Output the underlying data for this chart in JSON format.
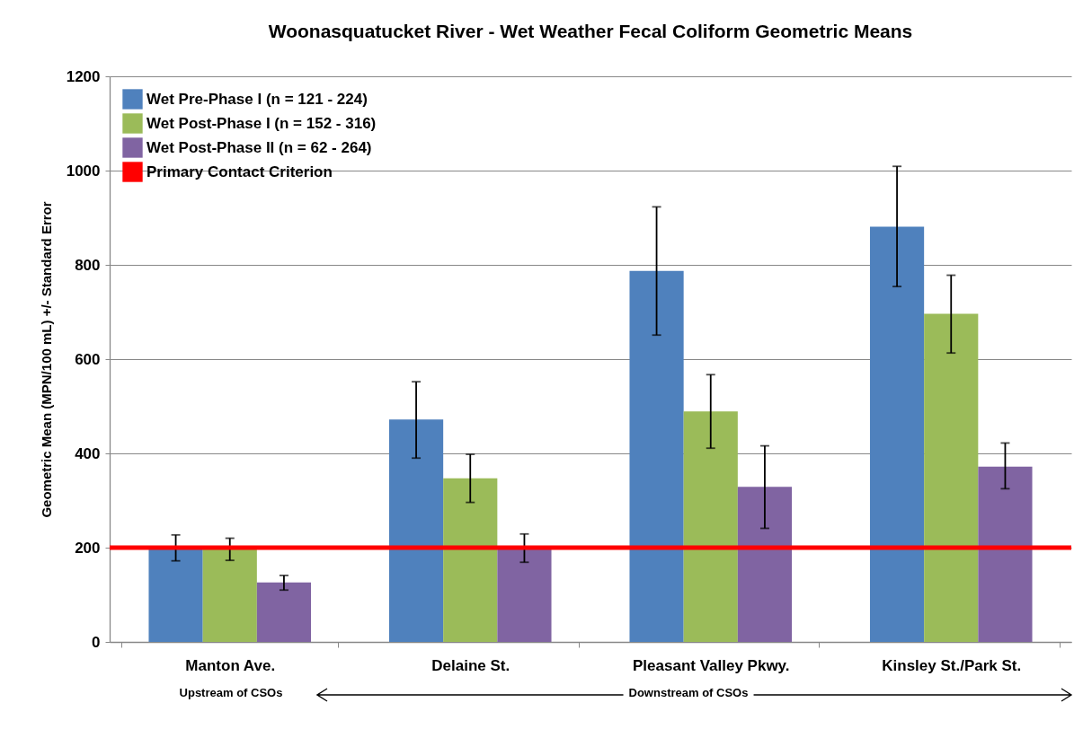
{
  "chart_data": {
    "type": "bar",
    "title": "Woonasquatucket River - Wet Weather Fecal Coliform Geometric Means",
    "ylabel": "Geometric Mean (MPN/100 mL)  +/- Standard Error",
    "categories": [
      "Manton Ave.",
      "Delaine St.",
      "Pleasant Valley Pkwy.",
      "Kinsley St./Park St."
    ],
    "series": [
      {
        "name": "Wet Pre-Phase I (n = 121 - 224)",
        "color": "#4f81bd",
        "values": [
          199,
          472,
          787,
          881
        ],
        "errors": [
          [
            172,
            227
          ],
          [
            390,
            552
          ],
          [
            651,
            923
          ],
          [
            754,
            1009
          ]
        ]
      },
      {
        "name": "Wet Post-Phase I (n = 152 - 316)",
        "color": "#9bbb59",
        "values": [
          197,
          347,
          489,
          696
        ],
        "errors": [
          [
            173,
            220
          ],
          [
            296,
            398
          ],
          [
            411,
            567
          ],
          [
            613,
            778
          ]
        ]
      },
      {
        "name": "Wet Post-Phase II (n = 62 - 264)",
        "color": "#8064a2",
        "values": [
          126,
          200,
          329,
          372
        ],
        "errors": [
          [
            110,
            141
          ],
          [
            169,
            229
          ],
          [
            241,
            416
          ],
          [
            325,
            422
          ]
        ]
      }
    ],
    "ref_lines": [
      {
        "axis": "y",
        "value": 200,
        "label": "Primary Contact Criterion",
        "color": "#ff0000"
      }
    ],
    "ylim": [
      0,
      1200
    ],
    "yticks": [
      0,
      200,
      400,
      600,
      800,
      1000,
      1200
    ],
    "grid": "y",
    "legend": "top left",
    "annotations": [
      "Upstream of CSOs",
      "Downstream of CSOs"
    ]
  }
}
